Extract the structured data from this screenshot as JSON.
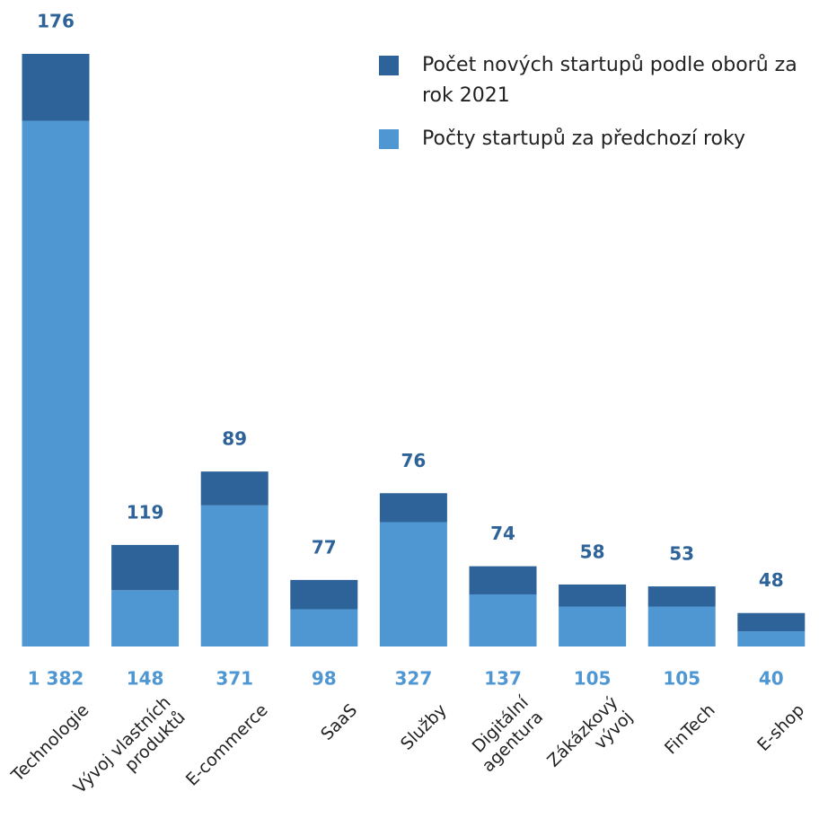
{
  "chart_data": {
    "type": "bar",
    "stacked": true,
    "categories": [
      [
        "Technologie"
      ],
      [
        "Vývoj vlastních",
        "produktů"
      ],
      [
        "E-commerce"
      ],
      [
        "SaaS"
      ],
      [
        "Služby"
      ],
      [
        "Digitální",
        "agentura"
      ],
      [
        "Zákázkový",
        "vývoj"
      ],
      [
        "FinTech"
      ],
      [
        "E-shop"
      ]
    ],
    "series": [
      {
        "name": "Počet nových startupů podle oborů za rok 2021",
        "color": "#2e6399",
        "values": [
          176,
          119,
          89,
          77,
          76,
          74,
          58,
          53,
          48
        ]
      },
      {
        "name": "Počty startupů za předchozí roky",
        "color": "#4f97d3",
        "values": [
          1382,
          148,
          371,
          98,
          327,
          137,
          105,
          105,
          40
        ],
        "value_labels": [
          "1 382",
          "148",
          "371",
          "98",
          "327",
          "137",
          "105",
          "105",
          "40"
        ]
      }
    ]
  }
}
